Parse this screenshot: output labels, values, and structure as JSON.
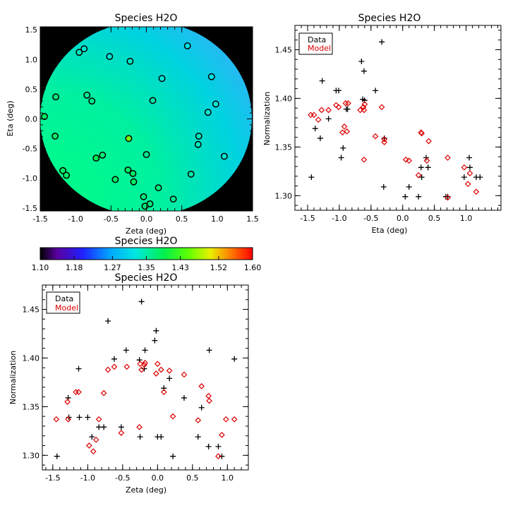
{
  "chart_data": [
    {
      "type": "heatmap",
      "title": "Species H2O",
      "xlabel": "Zeta (deg)",
      "ylabel": "Eta (deg)",
      "xlim": [
        -1.5,
        1.5
      ],
      "ylim": [
        -1.55,
        1.55
      ],
      "xticks": [
        "-1.5",
        "-1.0",
        "-0.5",
        "0.0",
        "0.5",
        "1.0",
        "1.5"
      ],
      "yticks": [
        "-1.5",
        "-1.0",
        "-0.5",
        "0.0",
        "0.5",
        "1.0",
        "1.5"
      ],
      "background_color": "#000000",
      "field": "normalization, smooth gradient from ~1.44 at lower-left to ~1.28 at upper-right",
      "points": [
        {
          "zeta": -0.95,
          "eta": 1.12,
          "value": 1.34
        },
        {
          "zeta": -0.88,
          "eta": 1.18,
          "value": 1.33
        },
        {
          "zeta": -0.52,
          "eta": 1.05,
          "value": 1.33
        },
        {
          "zeta": -0.23,
          "eta": 0.97,
          "value": 1.34
        },
        {
          "zeta": 0.58,
          "eta": 1.23,
          "value": 1.32
        },
        {
          "zeta": 0.92,
          "eta": 0.71,
          "value": 1.32
        },
        {
          "zeta": 0.22,
          "eta": 0.68,
          "value": 1.33
        },
        {
          "zeta": -1.28,
          "eta": 0.37,
          "value": 1.37
        },
        {
          "zeta": -0.84,
          "eta": 0.4,
          "value": 1.36
        },
        {
          "zeta": -0.77,
          "eta": 0.3,
          "value": 1.36
        },
        {
          "zeta": 0.09,
          "eta": 0.31,
          "value": 1.35
        },
        {
          "zeta": 0.98,
          "eta": 0.25,
          "value": 1.33
        },
        {
          "zeta": 0.87,
          "eta": 0.11,
          "value": 1.33
        },
        {
          "zeta": -1.44,
          "eta": 0.04,
          "value": 1.38
        },
        {
          "zeta": -1.29,
          "eta": -0.29,
          "value": 1.38
        },
        {
          "zeta": -0.25,
          "eta": -0.33,
          "value": 1.46
        },
        {
          "zeta": 0.74,
          "eta": -0.29,
          "value": 1.34
        },
        {
          "zeta": 0.73,
          "eta": -0.43,
          "value": 1.34
        },
        {
          "zeta": 1.1,
          "eta": -0.63,
          "value": 1.33
        },
        {
          "zeta": -0.62,
          "eta": -0.61,
          "value": 1.37
        },
        {
          "zeta": -0.71,
          "eta": -0.66,
          "value": 1.39
        },
        {
          "zeta": 0.0,
          "eta": -0.6,
          "value": 1.36
        },
        {
          "zeta": -0.26,
          "eta": -0.86,
          "value": 1.38
        },
        {
          "zeta": -0.19,
          "eta": -0.92,
          "value": 1.38
        },
        {
          "zeta": -0.18,
          "eta": -1.06,
          "value": 1.38
        },
        {
          "zeta": -0.44,
          "eta": -1.02,
          "value": 1.38
        },
        {
          "zeta": -1.18,
          "eta": -0.87,
          "value": 1.38
        },
        {
          "zeta": -1.13,
          "eta": -0.95,
          "value": 1.38
        },
        {
          "zeta": 0.17,
          "eta": -1.16,
          "value": 1.37
        },
        {
          "zeta": 0.63,
          "eta": -0.93,
          "value": 1.35
        },
        {
          "zeta": -0.04,
          "eta": -1.31,
          "value": 1.37
        },
        {
          "zeta": 0.38,
          "eta": -1.35,
          "value": 1.36
        },
        {
          "zeta": 0.05,
          "eta": -1.43,
          "value": 1.37
        },
        {
          "zeta": -0.02,
          "eta": -1.47,
          "value": 1.37
        }
      ]
    },
    {
      "type": "scatter",
      "title": "Species H2O",
      "xlabel": "Eta (deg)",
      "ylabel": "Normalization",
      "xlim": [
        -1.7,
        1.55
      ],
      "ylim": [
        1.285,
        1.475
      ],
      "xticks": [
        "-1.5",
        "-1.0",
        "-0.5",
        "0.0",
        "0.5",
        "1.0"
      ],
      "yticks": [
        "1.30",
        "1.35",
        "1.40",
        "1.45"
      ],
      "legend": [
        "Data",
        "Model"
      ],
      "legend_position": "top-left",
      "series": [
        {
          "name": "Data",
          "marker": "plus",
          "color": "#000000",
          "points": [
            [
              -1.44,
              1.319
            ],
            [
              -1.38,
              1.369
            ],
            [
              -1.3,
              1.359
            ],
            [
              -1.27,
              1.418
            ],
            [
              -1.17,
              1.379
            ],
            [
              -1.05,
              1.408
            ],
            [
              -1.01,
              1.408
            ],
            [
              -0.97,
              1.339
            ],
            [
              -0.94,
              1.349
            ],
            [
              -0.89,
              1.389
            ],
            [
              -0.87,
              1.389
            ],
            [
              -0.65,
              1.438
            ],
            [
              -0.63,
              1.399
            ],
            [
              -0.61,
              1.428
            ],
            [
              -0.6,
              1.398
            ],
            [
              -0.43,
              1.408
            ],
            [
              -0.33,
              1.458
            ],
            [
              -0.3,
              1.309
            ],
            [
              -0.29,
              1.359
            ],
            [
              0.04,
              1.299
            ],
            [
              0.1,
              1.309
            ],
            [
              0.25,
              1.299
            ],
            [
              0.29,
              1.329
            ],
            [
              0.3,
              1.319
            ],
            [
              0.37,
              1.339
            ],
            [
              0.4,
              1.329
            ],
            [
              0.68,
              1.299
            ],
            [
              0.71,
              1.299
            ],
            [
              0.97,
              1.319
            ],
            [
              1.05,
              1.339
            ],
            [
              1.06,
              1.329
            ],
            [
              1.16,
              1.319
            ],
            [
              1.22,
              1.319
            ]
          ]
        },
        {
          "name": "Model",
          "marker": "diamond",
          "color": "#dd0000",
          "points": [
            [
              -1.45,
              1.383
            ],
            [
              -1.4,
              1.383
            ],
            [
              -1.33,
              1.378
            ],
            [
              -1.28,
              1.388
            ],
            [
              -1.17,
              1.388
            ],
            [
              -1.05,
              1.393
            ],
            [
              -1.01,
              1.391
            ],
            [
              -0.95,
              1.365
            ],
            [
              -0.92,
              1.371
            ],
            [
              -0.9,
              1.395
            ],
            [
              -0.88,
              1.366
            ],
            [
              -0.86,
              1.395
            ],
            [
              -0.67,
              1.388
            ],
            [
              -0.62,
              1.391
            ],
            [
              -0.61,
              1.388
            ],
            [
              -0.61,
              1.337
            ],
            [
              -0.6,
              1.394
            ],
            [
              -0.43,
              1.361
            ],
            [
              -0.33,
              1.391
            ],
            [
              -0.29,
              1.358
            ],
            [
              -0.29,
              1.355
            ],
            [
              0.05,
              1.337
            ],
            [
              0.1,
              1.336
            ],
            [
              0.25,
              1.321
            ],
            [
              0.29,
              1.365
            ],
            [
              0.3,
              1.364
            ],
            [
              0.38,
              1.336
            ],
            [
              0.41,
              1.356
            ],
            [
              0.71,
              1.339
            ],
            [
              0.71,
              1.298
            ],
            [
              0.97,
              1.329
            ],
            [
              1.03,
              1.312
            ],
            [
              1.06,
              1.323
            ],
            [
              1.16,
              1.304
            ]
          ]
        }
      ]
    },
    {
      "type": "colorbar",
      "title": "Species H2O",
      "tick_labels": [
        "1.10",
        "1.18",
        "1.27",
        "1.35",
        "1.43",
        "1.52",
        "1.60"
      ],
      "range": [
        1.1,
        1.6
      ],
      "colormap": "rainbow (black-purple-blue-cyan-green-yellow-red)"
    },
    {
      "type": "scatter",
      "title": "Species H2O",
      "xlabel": "Zeta (deg)",
      "ylabel": "Normalization",
      "xlim": [
        -1.65,
        1.3
      ],
      "ylim": [
        1.285,
        1.475
      ],
      "xticks": [
        "-1.5",
        "-1.0",
        "-0.5",
        "0.0",
        "0.5",
        "1.0"
      ],
      "yticks": [
        "1.30",
        "1.35",
        "1.40",
        "1.45"
      ],
      "legend": [
        "Data",
        "Model"
      ],
      "legend_position": "top-left",
      "series": [
        {
          "name": "Data",
          "marker": "plus",
          "color": "#000000",
          "points": [
            [
              -1.44,
              1.299
            ],
            [
              -1.28,
              1.359
            ],
            [
              -1.27,
              1.339
            ],
            [
              -1.13,
              1.389
            ],
            [
              -1.12,
              1.339
            ],
            [
              -1.0,
              1.339
            ],
            [
              -0.94,
              1.319
            ],
            [
              -0.84,
              1.329
            ],
            [
              -0.77,
              1.329
            ],
            [
              -0.71,
              1.438
            ],
            [
              -0.62,
              1.399
            ],
            [
              -0.52,
              1.329
            ],
            [
              -0.45,
              1.408
            ],
            [
              -0.26,
              1.398
            ],
            [
              -0.25,
              1.319
            ],
            [
              -0.23,
              1.458
            ],
            [
              -0.19,
              1.389
            ],
            [
              -0.18,
              1.408
            ],
            [
              -0.04,
              1.418
            ],
            [
              -0.02,
              1.428
            ],
            [
              0.0,
              1.319
            ],
            [
              0.05,
              1.319
            ],
            [
              0.09,
              1.369
            ],
            [
              0.17,
              1.379
            ],
            [
              0.22,
              1.299
            ],
            [
              0.38,
              1.359
            ],
            [
              0.58,
              1.319
            ],
            [
              0.63,
              1.349
            ],
            [
              0.73,
              1.309
            ],
            [
              0.74,
              1.408
            ],
            [
              0.87,
              1.309
            ],
            [
              0.92,
              1.299
            ],
            [
              1.1,
              1.399
            ]
          ]
        },
        {
          "name": "Model",
          "marker": "diamond",
          "color": "#dd0000",
          "points": [
            [
              -1.45,
              1.337
            ],
            [
              -1.29,
              1.355
            ],
            [
              -1.28,
              1.337
            ],
            [
              -1.17,
              1.365
            ],
            [
              -1.13,
              1.365
            ],
            [
              -0.98,
              1.31
            ],
            [
              -0.92,
              1.304
            ],
            [
              -0.88,
              1.316
            ],
            [
              -0.84,
              1.337
            ],
            [
              -0.77,
              1.364
            ],
            [
              -0.71,
              1.388
            ],
            [
              -0.62,
              1.391
            ],
            [
              -0.52,
              1.323
            ],
            [
              -0.44,
              1.391
            ],
            [
              -0.25,
              1.394
            ],
            [
              -0.26,
              1.329
            ],
            [
              -0.23,
              1.388
            ],
            [
              -0.19,
              1.393
            ],
            [
              -0.18,
              1.395
            ],
            [
              -0.02,
              1.384
            ],
            [
              0.0,
              1.394
            ],
            [
              0.05,
              1.388
            ],
            [
              0.09,
              1.365
            ],
            [
              0.17,
              1.387
            ],
            [
              0.22,
              1.34
            ],
            [
              0.38,
              1.383
            ],
            [
              0.58,
              1.336
            ],
            [
              0.63,
              1.371
            ],
            [
              0.73,
              1.361
            ],
            [
              0.74,
              1.356
            ],
            [
              0.87,
              1.299
            ],
            [
              0.92,
              1.321
            ],
            [
              0.98,
              1.337
            ],
            [
              1.1,
              1.337
            ]
          ]
        }
      ]
    }
  ]
}
